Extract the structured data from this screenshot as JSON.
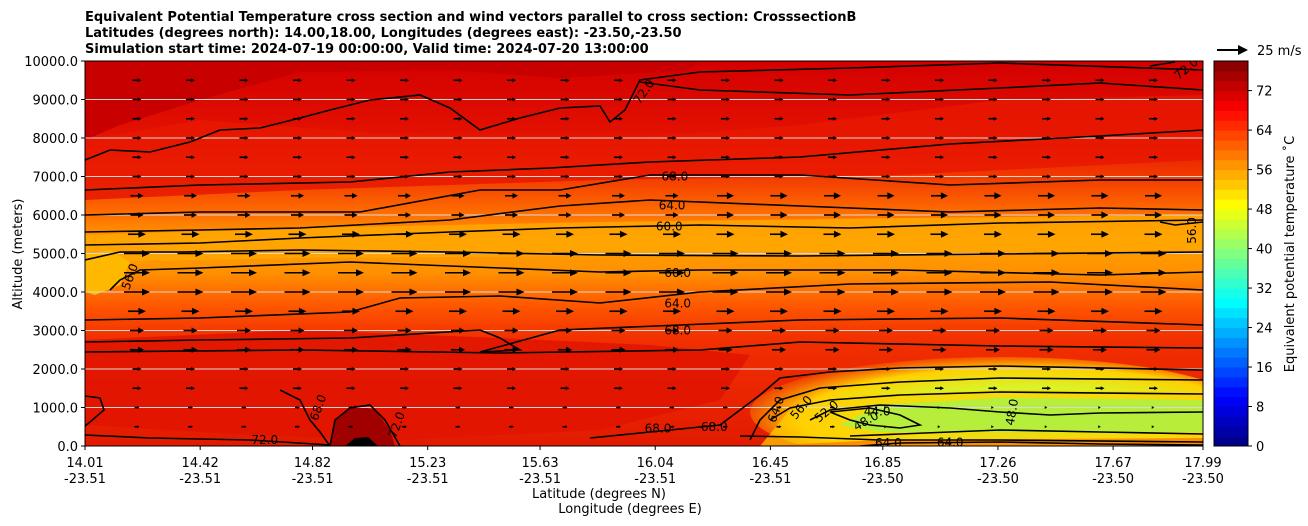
{
  "chart_data": {
    "type": "contour",
    "title_lines": [
      "Equivalent Potential Temperature cross section and wind vectors parallel to cross section: CrosssectionB",
      "Latitudes (degrees north): 14.00,18.00, Longitudes (degrees east): -23.50,-23.50",
      "Simulation start time: 2024-07-19 00:00:00, Valid time: 2024-07-20 13:00:00"
    ],
    "ylabel": "Altitude (meters)",
    "xlabel_lat": "Latitude (degrees N)",
    "xlabel_lon": "Longitude (degrees E)",
    "ylim": [
      0,
      10000
    ],
    "yticks": [
      0,
      1000,
      2000,
      3000,
      4000,
      5000,
      6000,
      7000,
      8000,
      9000,
      10000
    ],
    "ytick_labels": [
      "0.0",
      "1000.0",
      "2000.0",
      "3000.0",
      "4000.0",
      "5000.0",
      "6000.0",
      "7000.0",
      "8000.0",
      "9000.0",
      "10000.0"
    ],
    "grid": "horizontal",
    "x_ticks": [
      {
        "lat": "14.01",
        "lon": "-23.51"
      },
      {
        "lat": "14.42",
        "lon": "-23.51"
      },
      {
        "lat": "14.82",
        "lon": "-23.51"
      },
      {
        "lat": "15.23",
        "lon": "-23.51"
      },
      {
        "lat": "15.63",
        "lon": "-23.51"
      },
      {
        "lat": "16.04",
        "lon": "-23.51"
      },
      {
        "lat": "16.45",
        "lon": "-23.51"
      },
      {
        "lat": "16.85",
        "lon": "-23.50"
      },
      {
        "lat": "17.26",
        "lon": "-23.50"
      },
      {
        "lat": "17.67",
        "lon": "-23.50"
      },
      {
        "lat": "17.99",
        "lon": "-23.50"
      }
    ],
    "quiver_key": "25 m/s",
    "colorbar": {
      "label": "Equivalent potential temperature $^\\circ$C",
      "label_text": "Equivalent potential temperature ˚C",
      "min": 0,
      "max": 78,
      "step": 2,
      "tick_values": [
        0,
        8,
        16,
        24,
        32,
        40,
        48,
        56,
        64,
        72
      ],
      "colormap": "jet"
    },
    "contour_labels": [
      {
        "text": "72.0",
        "lat": 16.0,
        "alt": 9200,
        "rot": -55
      },
      {
        "text": "68.0",
        "lat": 16.11,
        "alt": 7000,
        "rot": 0
      },
      {
        "text": "64.0",
        "lat": 16.1,
        "alt": 6250,
        "rot": 0
      },
      {
        "text": "60.0",
        "lat": 16.09,
        "alt": 5700,
        "rot": 0
      },
      {
        "text": "56.0",
        "lat": 14.17,
        "alt": 4400,
        "rot": -70
      },
      {
        "text": "60.0",
        "lat": 16.12,
        "alt": 4500,
        "rot": 0
      },
      {
        "text": "64.0",
        "lat": 16.12,
        "alt": 3700,
        "rot": 0
      },
      {
        "text": "68.0",
        "lat": 16.12,
        "alt": 3000,
        "rot": 0
      },
      {
        "text": "56.0",
        "lat": 17.95,
        "alt": 5600,
        "rot": -90
      },
      {
        "text": "68.0",
        "lat": 14.84,
        "alt": 1000,
        "rot": -70
      },
      {
        "text": "72.0",
        "lat": 15.12,
        "alt": 550,
        "rot": -70
      },
      {
        "text": "72.0",
        "lat": 14.65,
        "alt": 150,
        "rot": 0
      },
      {
        "text": "68.0",
        "lat": 16.05,
        "alt": 450,
        "rot": 0
      },
      {
        "text": "68.0",
        "lat": 16.25,
        "alt": 500,
        "rot": 0
      },
      {
        "text": "64.0",
        "lat": 16.47,
        "alt": 950,
        "rot": -70
      },
      {
        "text": "56.0",
        "lat": 16.56,
        "alt": 1000,
        "rot": -50
      },
      {
        "text": "52.0",
        "lat": 16.65,
        "alt": 900,
        "rot": -40
      },
      {
        "text": "44.0",
        "lat": 16.83,
        "alt": 900,
        "rot": 0
      },
      {
        "text": "48.0",
        "lat": 16.79,
        "alt": 650,
        "rot": -30
      },
      {
        "text": "48.0",
        "lat": 17.31,
        "alt": 880,
        "rot": -80
      },
      {
        "text": "64.0",
        "lat": 16.87,
        "alt": 80,
        "rot": 0
      },
      {
        "text": "64.0",
        "lat": 17.09,
        "alt": 90,
        "rot": 0
      },
      {
        "text": "72.0",
        "lat": 17.93,
        "alt": 9800,
        "rot": -40
      }
    ]
  }
}
